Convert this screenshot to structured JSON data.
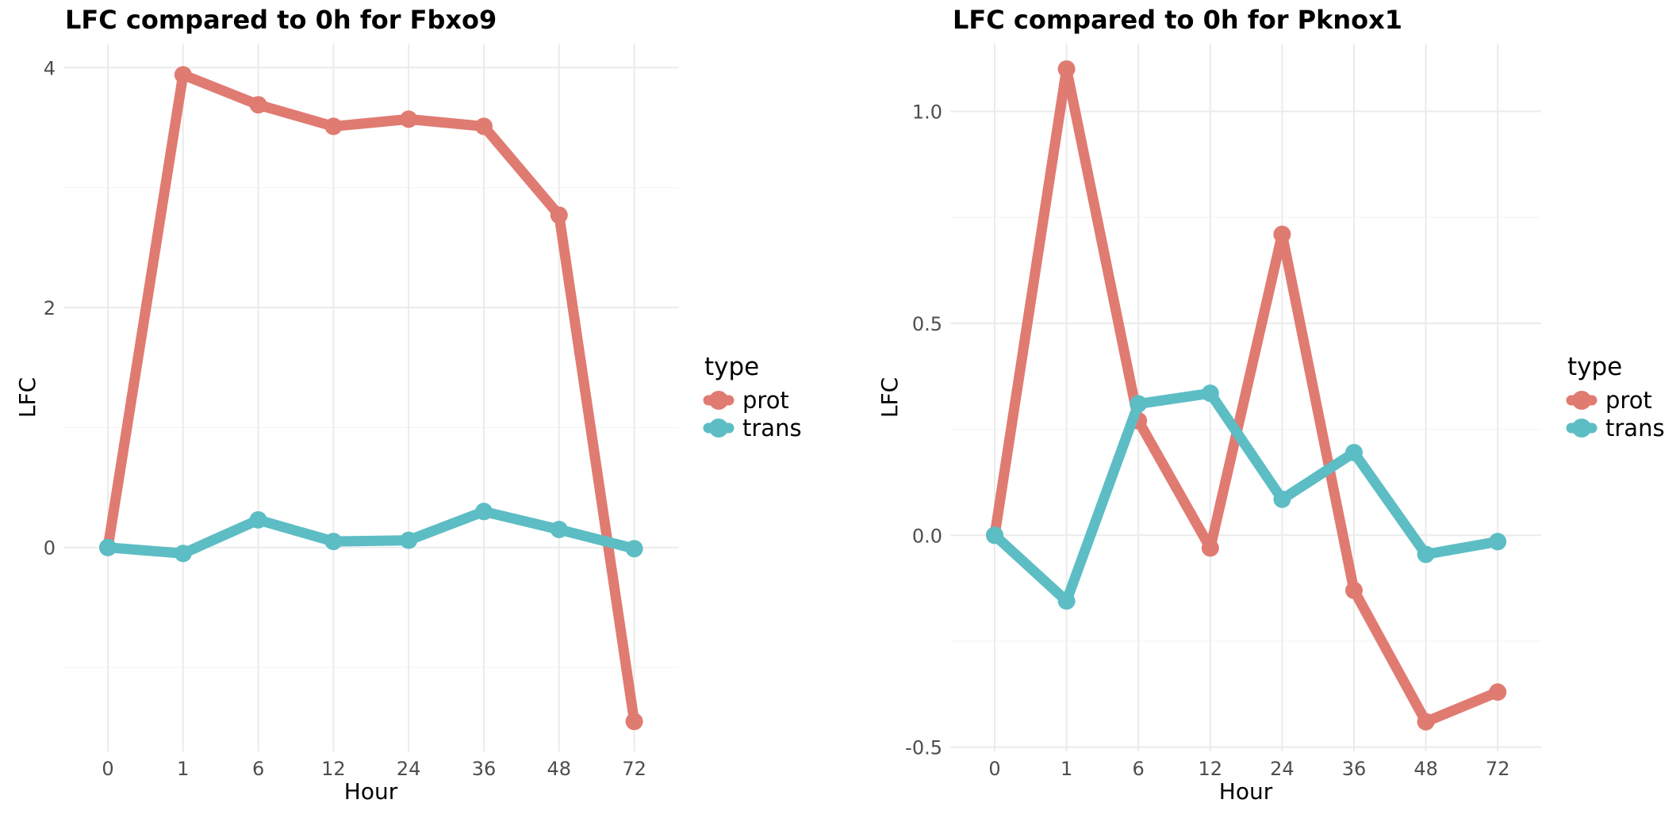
{
  "chart_data": [
    {
      "type": "line",
      "title": "LFC compared to 0h for Fbxo9",
      "xlabel": "Hour",
      "ylabel": "LFC",
      "categories": [
        "0",
        "1",
        "6",
        "12",
        "24",
        "36",
        "48",
        "72"
      ],
      "ylim": [
        -1.7,
        4.2
      ],
      "yticks": [
        0,
        2,
        4
      ],
      "ytick_labels": [
        "0",
        "2",
        "4"
      ],
      "grid": true,
      "legend": {
        "title": "type",
        "placement": "right"
      },
      "series": [
        {
          "name": "prot",
          "color": "#e07b72",
          "values": [
            0,
            3.94,
            3.69,
            3.51,
            3.57,
            3.51,
            2.77,
            -1.45
          ]
        },
        {
          "name": "trans",
          "color": "#5dbdc4",
          "values": [
            0,
            -0.05,
            0.23,
            0.05,
            0.06,
            0.3,
            0.15,
            -0.01
          ]
        }
      ]
    },
    {
      "type": "line",
      "title": "LFC compared to 0h for Pknox1",
      "xlabel": "Hour",
      "ylabel": "LFC",
      "categories": [
        "0",
        "1",
        "6",
        "12",
        "24",
        "36",
        "48",
        "72"
      ],
      "ylim": [
        -0.51,
        1.16
      ],
      "yticks": [
        -0.5,
        0,
        0.5,
        1.0
      ],
      "ytick_labels": [
        "-0.5",
        "0.0",
        "0.5",
        "1.0"
      ],
      "grid": true,
      "legend": {
        "title": "type",
        "placement": "right"
      },
      "series": [
        {
          "name": "prot",
          "color": "#e07b72",
          "values": [
            0,
            1.1,
            0.27,
            -0.03,
            0.71,
            -0.13,
            -0.44,
            -0.37
          ]
        },
        {
          "name": "trans",
          "color": "#5dbdc4",
          "values": [
            0,
            -0.155,
            0.31,
            0.335,
            0.085,
            0.195,
            -0.045,
            -0.015
          ]
        }
      ]
    }
  ]
}
